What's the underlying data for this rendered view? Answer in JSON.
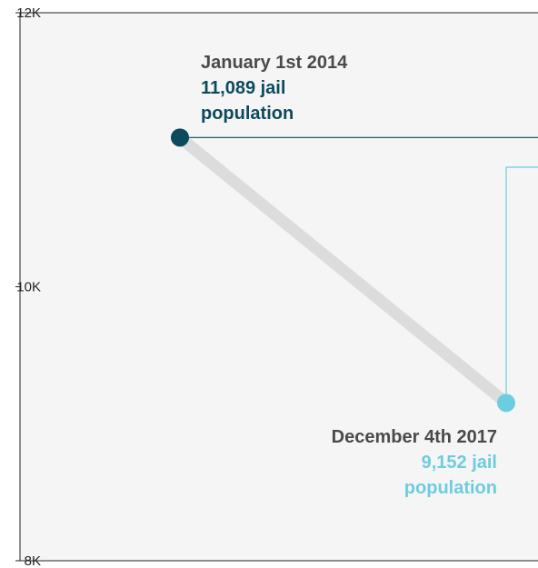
{
  "chart_data": {
    "type": "scatter",
    "y_ticks": [
      {
        "value": 12000,
        "label": "12K"
      },
      {
        "value": 10000,
        "label": "10K"
      },
      {
        "value": 8000,
        "label": "8K"
      }
    ],
    "ylim": [
      8000,
      12000
    ],
    "connector_color": "#dcdcdc",
    "points": [
      {
        "date": "January 1st 2014",
        "value": 11089,
        "value_line1": "11,089 jail",
        "value_line2": "population",
        "color": "#0d4a5e"
      },
      {
        "date": "December 4th 2017",
        "value": 9152,
        "value_line1": "9,152 jail",
        "value_line2": "population",
        "color": "#6dcde0"
      }
    ]
  }
}
